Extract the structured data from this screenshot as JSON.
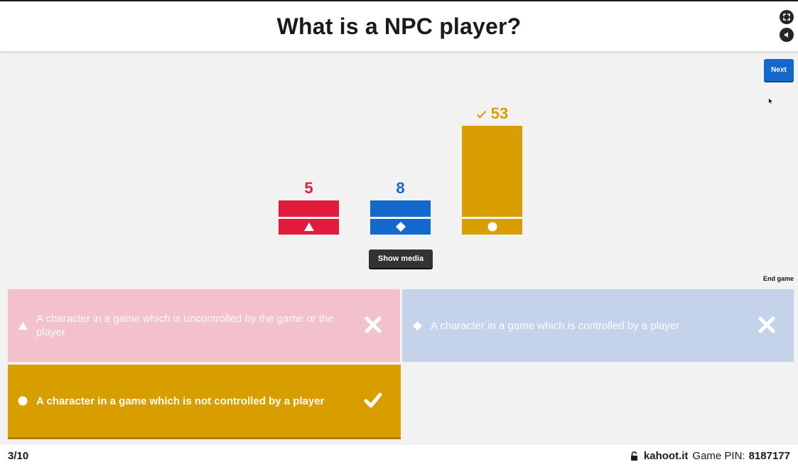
{
  "header": {
    "question": "What is a NPC player?"
  },
  "controls": {
    "next_label": "Next",
    "show_media_label": "Show media",
    "end_game_label": "End game"
  },
  "results": [
    {
      "count": "5",
      "value": 5,
      "color": "#e21b3c",
      "shape": "triangle",
      "correct": false
    },
    {
      "count": "8",
      "value": 8,
      "color": "#1368ce",
      "shape": "diamond",
      "correct": false
    },
    {
      "count": "53",
      "value": 53,
      "color": "#d89e00",
      "shape": "circle",
      "correct": true
    }
  ],
  "answers": [
    {
      "text": "A character in a game which is uncontrolled by the game or the player",
      "shape": "triangle",
      "correct": false
    },
    {
      "text": "A character in a game which is controlled by a player",
      "shape": "diamond",
      "correct": false
    },
    {
      "text": "A character in a game which is not controlled by a player",
      "shape": "circle",
      "correct": true
    }
  ],
  "footer": {
    "progress": "3/10",
    "site": "kahoot.it",
    "pin_label": "Game PIN:",
    "pin_value": "8187177"
  }
}
